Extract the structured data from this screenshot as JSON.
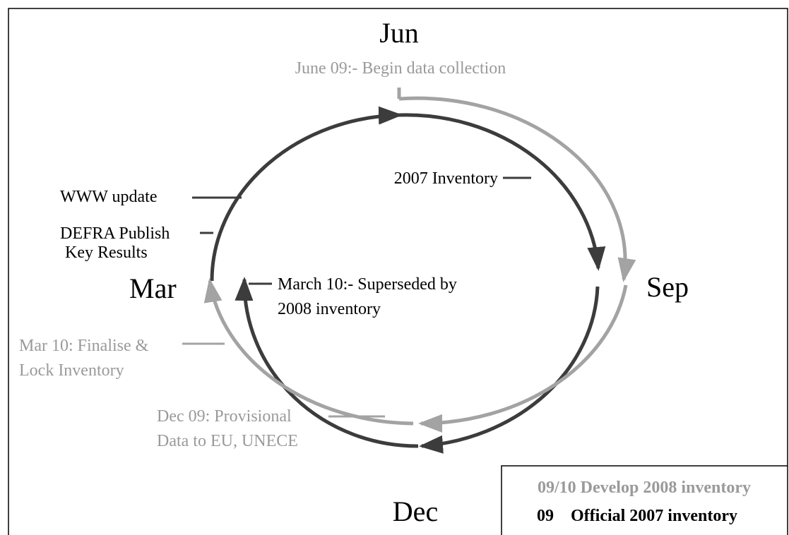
{
  "months": {
    "top": "Jun",
    "right": "Sep",
    "bottom": "Dec",
    "left": "Mar"
  },
  "annotations": {
    "june": "June 09:- Begin data collection",
    "inventory2007": "2007 Inventory",
    "www": "WWW update",
    "defra": [
      "DEFRA Publish",
      "Key Results"
    ],
    "superseded": [
      "March 10:- Superseded by",
      "2008 inventory"
    ],
    "finalise": [
      "Mar 10: Finalise &",
      "Lock Inventory"
    ],
    "provisional": [
      "Dec 09: Provisional",
      "Data to EU, UNECE"
    ]
  },
  "legend": {
    "develop": "09/10 Develop 2008 inventory",
    "official": {
      "code": "09",
      "label": "Official 2007 inventory"
    }
  }
}
